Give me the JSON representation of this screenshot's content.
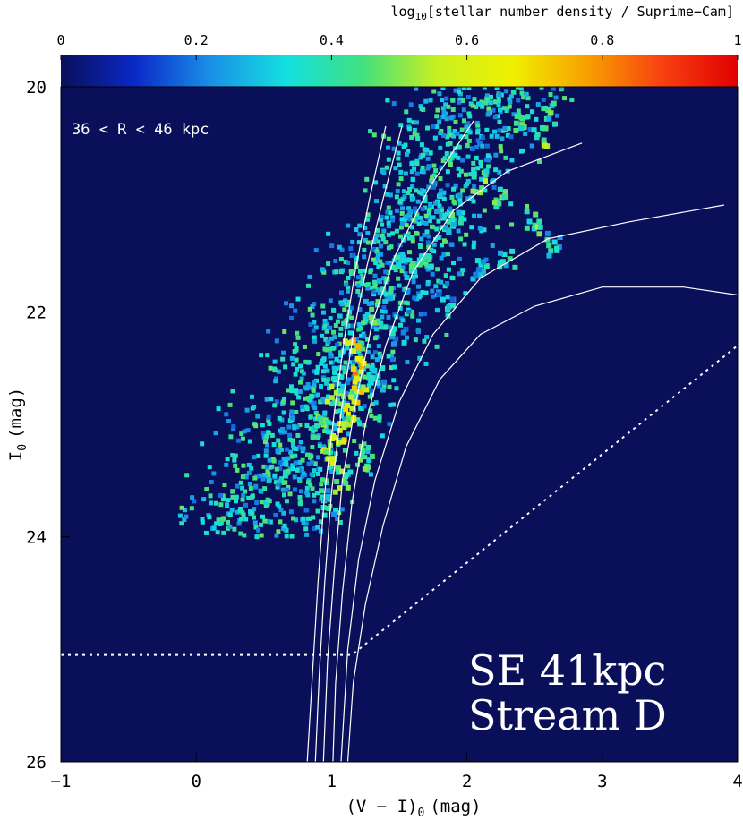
{
  "chart_data": {
    "type": "heatmap",
    "title": "",
    "xlabel": "(V − I)",
    "xlabel_sub": "0",
    "xlabel_unit": "(mag)",
    "ylabel": "I",
    "ylabel_sub": "0",
    "ylabel_unit": "(mag)",
    "xlim": [
      -1,
      4
    ],
    "ylim": [
      26,
      20
    ],
    "x_ticks": [
      "−1",
      "0",
      "1",
      "2",
      "3",
      "4"
    ],
    "y_ticks": [
      "20",
      "22",
      "24",
      "26"
    ],
    "colorbar": {
      "label_prefix": "log",
      "label_sub": "10",
      "label_rest": "[stellar number density / Suprime−Cam]",
      "range": [
        0,
        1
      ],
      "ticks": [
        "0",
        "0.2",
        "0.4",
        "0.6",
        "0.8",
        "1"
      ],
      "colors": [
        "#0a0f5a",
        "#0a2ac8",
        "#1a90e8",
        "#14e0e0",
        "#40e080",
        "#c8f020",
        "#f0f000",
        "#f8a000",
        "#f84010",
        "#e00000"
      ]
    },
    "annotations": {
      "radial_range": "36 < R < 46 kpc",
      "field_line1": "SE 41kpc",
      "field_line2": "Stream D"
    },
    "isochrones": [
      [
        [
          1.4,
          20.35
        ],
        [
          1.28,
          21.0
        ],
        [
          1.18,
          21.6
        ],
        [
          1.1,
          22.2
        ],
        [
          1.02,
          22.9
        ],
        [
          0.95,
          23.6
        ],
        [
          0.9,
          24.4
        ],
        [
          0.86,
          25.2
        ],
        [
          0.82,
          26.0
        ]
      ],
      [
        [
          1.52,
          20.35
        ],
        [
          1.38,
          21.0
        ],
        [
          1.26,
          21.6
        ],
        [
          1.16,
          22.2
        ],
        [
          1.07,
          22.9
        ],
        [
          1.0,
          23.6
        ],
        [
          0.95,
          24.4
        ],
        [
          0.91,
          25.2
        ],
        [
          0.88,
          26.0
        ]
      ],
      [
        [
          2.05,
          20.3
        ],
        [
          1.72,
          20.9
        ],
        [
          1.47,
          21.5
        ],
        [
          1.3,
          22.1
        ],
        [
          1.18,
          22.8
        ],
        [
          1.08,
          23.5
        ],
        [
          1.02,
          24.3
        ],
        [
          0.97,
          25.1
        ],
        [
          0.94,
          26.0
        ]
      ],
      [
        [
          2.85,
          20.5
        ],
        [
          2.3,
          20.75
        ],
        [
          1.9,
          21.1
        ],
        [
          1.6,
          21.65
        ],
        [
          1.4,
          22.3
        ],
        [
          1.25,
          23.0
        ],
        [
          1.15,
          23.7
        ],
        [
          1.08,
          24.5
        ],
        [
          1.03,
          25.3
        ],
        [
          1.01,
          26.0
        ]
      ],
      [
        [
          3.9,
          21.05
        ],
        [
          3.2,
          21.2
        ],
        [
          2.6,
          21.35
        ],
        [
          2.1,
          21.7
        ],
        [
          1.75,
          22.2
        ],
        [
          1.5,
          22.8
        ],
        [
          1.32,
          23.5
        ],
        [
          1.2,
          24.2
        ],
        [
          1.12,
          25.0
        ],
        [
          1.07,
          26.0
        ]
      ],
      [
        [
          4.0,
          21.85
        ],
        [
          3.6,
          21.78
        ],
        [
          3.0,
          21.78
        ],
        [
          2.5,
          21.95
        ],
        [
          2.1,
          22.2
        ],
        [
          1.8,
          22.6
        ],
        [
          1.55,
          23.2
        ],
        [
          1.38,
          23.9
        ],
        [
          1.25,
          24.6
        ],
        [
          1.16,
          25.3
        ],
        [
          1.12,
          26.0
        ]
      ]
    ],
    "completeness_limit": [
      [
        -1,
        25.05
      ],
      [
        1.15,
        25.05
      ],
      [
        4,
        22.3
      ]
    ],
    "hotspots": [
      {
        "x": 1.18,
        "y": 22.5,
        "level": 0.85
      },
      {
        "x": 1.15,
        "y": 22.35,
        "level": 0.8
      },
      {
        "x": 1.2,
        "y": 22.7,
        "level": 0.75
      },
      {
        "x": 1.05,
        "y": 23.1,
        "level": 0.78
      },
      {
        "x": 1.12,
        "y": 22.9,
        "level": 0.7
      },
      {
        "x": 1.0,
        "y": 23.3,
        "level": 0.72
      },
      {
        "x": 1.08,
        "y": 23.5,
        "level": 0.6
      },
      {
        "x": 0.95,
        "y": 23.0,
        "level": 0.55
      },
      {
        "x": 1.25,
        "y": 23.3,
        "level": 0.55
      },
      {
        "x": 1.02,
        "y": 22.7,
        "level": 0.6
      },
      {
        "x": 1.3,
        "y": 22.0,
        "level": 0.5
      },
      {
        "x": 1.4,
        "y": 21.8,
        "level": 0.48
      },
      {
        "x": 1.55,
        "y": 21.6,
        "level": 0.5
      },
      {
        "x": 1.7,
        "y": 21.5,
        "level": 0.45
      },
      {
        "x": 1.9,
        "y": 21.2,
        "level": 0.5
      },
      {
        "x": 2.1,
        "y": 20.85,
        "level": 0.55
      },
      {
        "x": 2.25,
        "y": 21.0,
        "level": 0.5
      },
      {
        "x": 2.4,
        "y": 20.35,
        "level": 0.5
      },
      {
        "x": 2.55,
        "y": 20.45,
        "level": 0.55
      },
      {
        "x": 2.6,
        "y": 20.25,
        "level": 0.5
      },
      {
        "x": 2.5,
        "y": 21.2,
        "level": 0.55
      },
      {
        "x": 2.65,
        "y": 21.4,
        "level": 0.45
      },
      {
        "x": 2.3,
        "y": 21.5,
        "level": 0.45
      },
      {
        "x": 2.1,
        "y": 21.6,
        "level": 0.4
      },
      {
        "x": 1.85,
        "y": 21.9,
        "level": 0.4
      },
      {
        "x": 0.98,
        "y": 23.7,
        "level": 0.45
      },
      {
        "x": 1.35,
        "y": 22.6,
        "level": 0.42
      },
      {
        "x": 1.5,
        "y": 22.2,
        "level": 0.4
      }
    ]
  }
}
